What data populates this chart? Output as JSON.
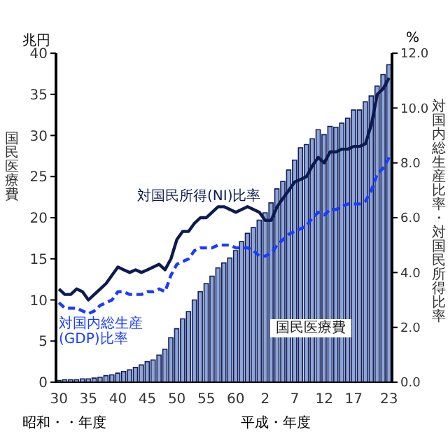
{
  "chart_data": {
    "type": "bar",
    "ylabel": "国民医療費",
    "y2label": "対国内総生産比率・対国民所得比率",
    "xlabel": "昭和・・年度",
    "annotations": [
      "兆円",
      "%",
      "平成・年度"
    ],
    "categories": [
      "30",
      null,
      null,
      null,
      null,
      "35",
      null,
      null,
      null,
      null,
      "40",
      null,
      null,
      null,
      null,
      "45",
      null,
      null,
      null,
      null,
      "50",
      null,
      null,
      null,
      null,
      "55",
      null,
      null,
      null,
      null,
      "60",
      null,
      null,
      null,
      null,
      "2",
      null,
      null,
      null,
      null,
      "7",
      null,
      null,
      null,
      null,
      "12",
      null,
      null,
      null,
      null,
      "17",
      null,
      null,
      null,
      null,
      null,
      "23"
    ],
    "ylim": [
      0,
      40
    ],
    "yticks": [
      0,
      5,
      10,
      15,
      20,
      25,
      30,
      35,
      40
    ],
    "y2lim": [
      0,
      12
    ],
    "y2ticks": [
      {
        "value": 0,
        "label": "0.0"
      },
      {
        "value": 2,
        "label": "2.0"
      },
      {
        "value": 4,
        "label": "4.0"
      },
      {
        "value": 6,
        "label": "6.0"
      },
      {
        "value": 8,
        "label": "8.0"
      },
      {
        "value": 10,
        "label": "10.0"
      },
      {
        "value": 12,
        "label": "12.0"
      }
    ],
    "series": [
      {
        "name": "国民医療費",
        "color": "#8ea6d6",
        "values": [
          0.2,
          0.3,
          0.3,
          0.3,
          0.4,
          0.4,
          0.5,
          0.6,
          0.8,
          0.9,
          1.1,
          1.3,
          1.5,
          1.8,
          2.1,
          2.5,
          2.7,
          3.3,
          4.0,
          5.4,
          6.5,
          7.7,
          8.6,
          10.0,
          11.0,
          12.0,
          12.9,
          13.9,
          14.5,
          15.1,
          16.0,
          17.1,
          18.1,
          18.8,
          19.7,
          20.6,
          21.8,
          23.5,
          24.4,
          25.8,
          27.0,
          28.5,
          28.9,
          29.6,
          30.7,
          30.1,
          31.1,
          31.0,
          31.5,
          32.1,
          33.1,
          33.1,
          34.1,
          34.8,
          36.0,
          37.4,
          38.6
        ]
      },
      {
        "name": "対国民所得(NI)比率",
        "type": "line",
        "axis": "y2",
        "line_style": "solid",
        "color": "#0d1a50",
        "values": [
          3.4,
          3.2,
          3.2,
          3.4,
          3.3,
          3.0,
          3.2,
          3.4,
          3.6,
          3.9,
          4.2,
          4.1,
          4.0,
          4.1,
          4.0,
          4.1,
          4.2,
          4.3,
          4.1,
          4.5,
          5.2,
          5.5,
          5.5,
          5.8,
          6.0,
          6.0,
          6.2,
          6.4,
          6.4,
          6.3,
          6.2,
          6.3,
          6.4,
          6.3,
          6.2,
          5.9,
          5.9,
          6.4,
          6.7,
          7.0,
          7.3,
          7.4,
          7.5,
          7.9,
          8.2,
          8.0,
          8.4,
          8.4,
          8.5,
          8.5,
          8.6,
          8.6,
          8.7,
          9.4,
          10.5,
          10.7,
          11.1
        ]
      },
      {
        "name": "対国内総生産(GDP)比率",
        "type": "line",
        "axis": "y2",
        "line_style": "dashed",
        "color": "#1a3cff",
        "values": [
          2.9,
          2.7,
          2.7,
          2.7,
          2.6,
          2.5,
          2.6,
          2.8,
          2.9,
          3.0,
          3.3,
          3.3,
          3.2,
          3.2,
          3.2,
          3.3,
          3.3,
          3.4,
          3.3,
          3.9,
          4.3,
          4.4,
          4.5,
          4.8,
          4.9,
          4.9,
          4.9,
          5.0,
          5.0,
          5.0,
          4.9,
          4.9,
          4.9,
          4.8,
          4.6,
          4.6,
          4.7,
          5.0,
          5.2,
          5.4,
          5.5,
          5.6,
          5.7,
          6.0,
          6.2,
          6.1,
          6.3,
          6.3,
          6.4,
          6.5,
          6.5,
          6.5,
          6.6,
          7.0,
          7.6,
          7.8,
          8.2
        ]
      }
    ]
  }
}
